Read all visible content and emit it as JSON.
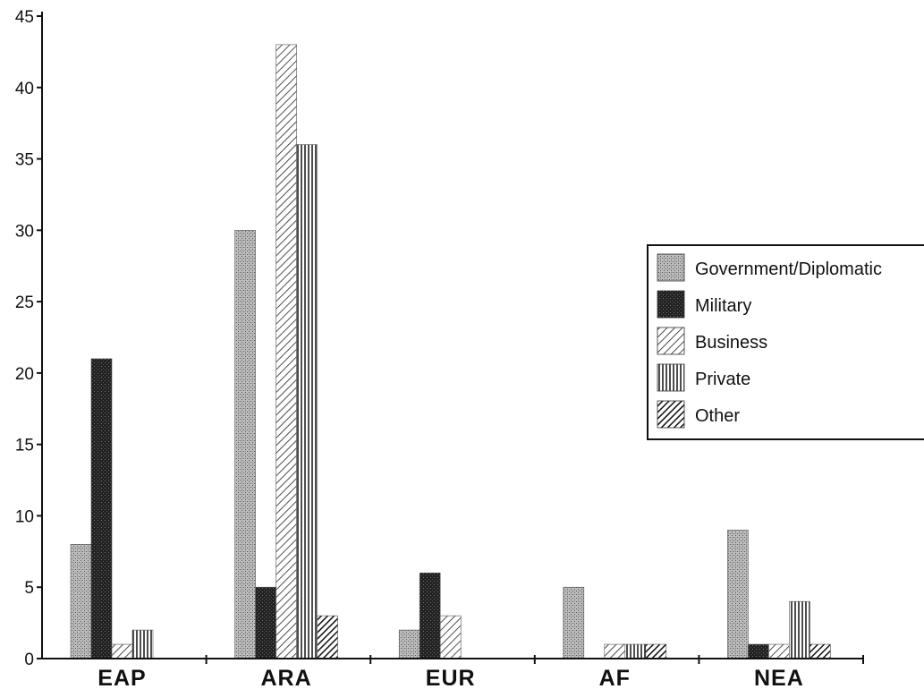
{
  "chart_data": {
    "type": "bar",
    "categories": [
      "EAP",
      "ARA",
      "EUR",
      "AF",
      "NEA"
    ],
    "series": [
      {
        "name": "Government/Diplomatic",
        "values": [
          8,
          30,
          2,
          5,
          9
        ]
      },
      {
        "name": "Military",
        "values": [
          21,
          5,
          6,
          0,
          1
        ]
      },
      {
        "name": "Business",
        "values": [
          1,
          43,
          3,
          1,
          1
        ]
      },
      {
        "name": "Private",
        "values": [
          2,
          36,
          0,
          1,
          4
        ]
      },
      {
        "name": "Other",
        "values": [
          0,
          3,
          0,
          1,
          1
        ]
      }
    ],
    "yticks": [
      0,
      5,
      10,
      15,
      20,
      25,
      30,
      35,
      40,
      45
    ],
    "ylim": [
      0,
      45
    ],
    "title": "",
    "xlabel": "",
    "ylabel": "",
    "legend_position": "right",
    "grid": false
  }
}
